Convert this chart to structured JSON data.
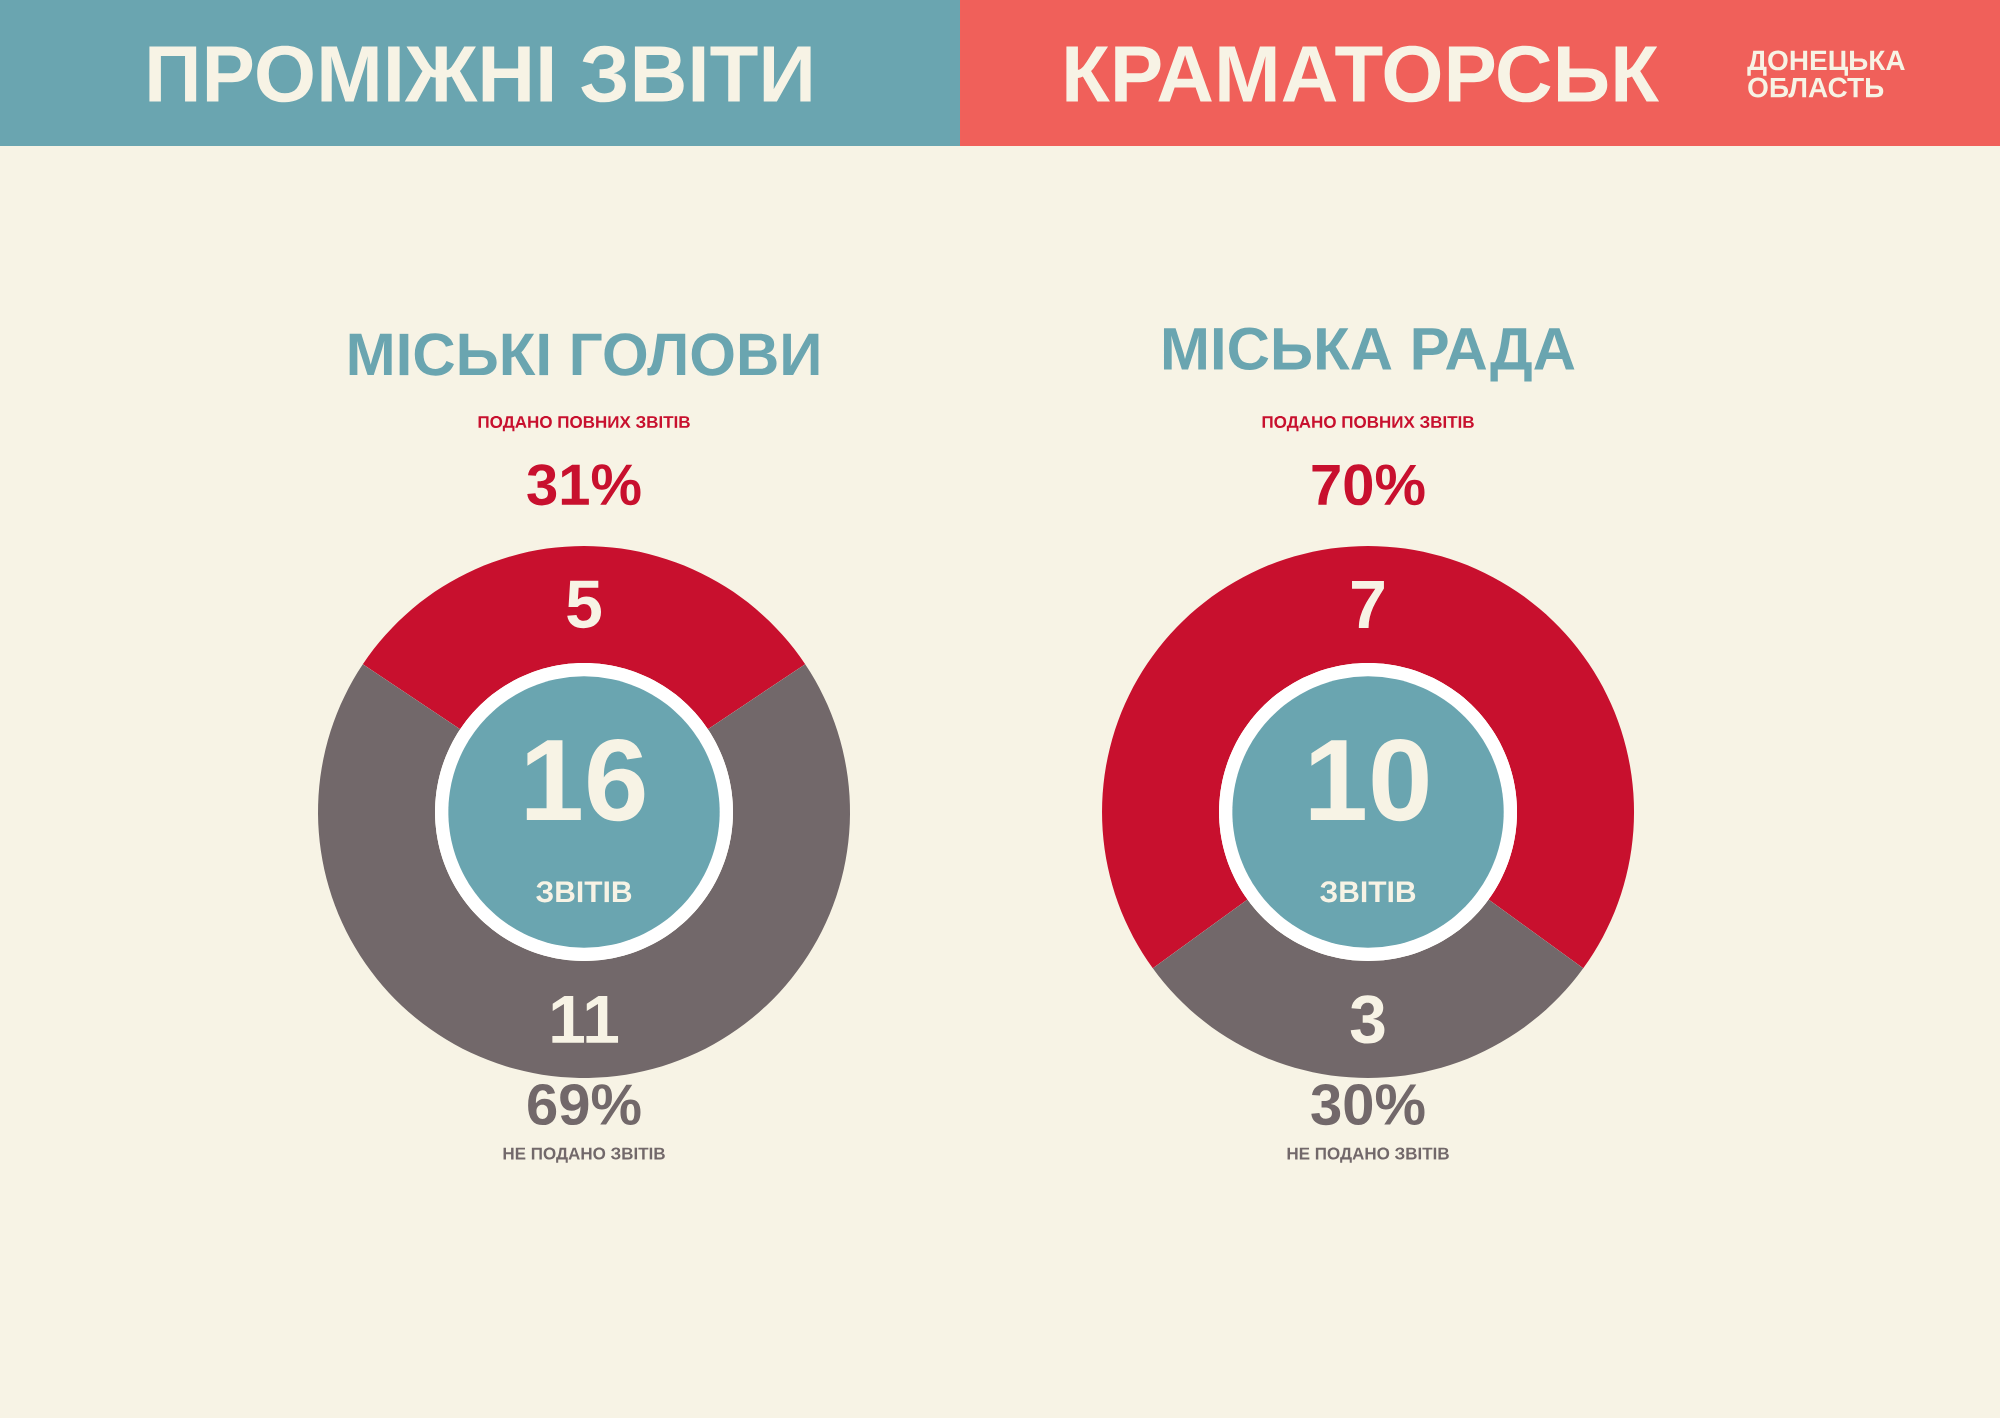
{
  "chart_data": [
    {
      "type": "other",
      "title": "ПРОМІЖНІ ЗВІТИ",
      "subtitle": "КРАМАТОРСЬК",
      "annotations": [
        "ДОНЕЦЬКА ОБЛАСТЬ"
      ]
    },
    {
      "type": "donut",
      "title": "МІСЬКІ ГОЛОВИ",
      "categories": [
        "ПОДАНО ПОВНИХ ЗВІТІВ",
        "НЕ ПОДАНО ЗВІТІВ"
      ],
      "values": [
        5,
        11
      ],
      "colors": [
        "#c8102e",
        "#72686a"
      ],
      "data_labels": true,
      "annotations": [
        "16",
        "ЗВІТІВ",
        "31%",
        "69%"
      ]
    },
    {
      "type": "donut",
      "title": "МІСЬКА РАДА",
      "categories": [
        "ПОДАНО ПОВНИХ ЗВІТІВ",
        "НЕ ПОДАНО ЗВІТІВ"
      ],
      "values": [
        7,
        3
      ],
      "colors": [
        "#c8102e",
        "#72686a"
      ],
      "data_labels": true,
      "annotations": [
        "10",
        "ЗВІТІВ",
        "70%",
        "30%"
      ]
    }
  ]
}
